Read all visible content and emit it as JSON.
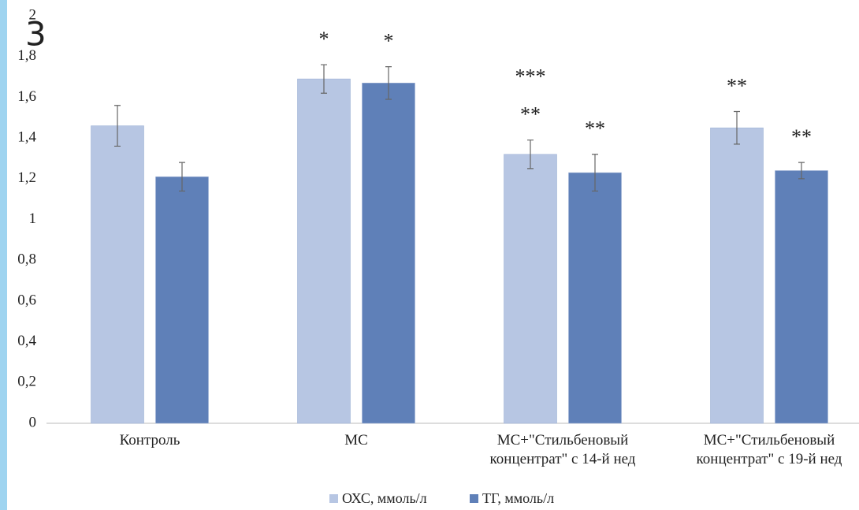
{
  "chart_data": {
    "type": "bar",
    "panel_label": "3",
    "categories": [
      "Контроль",
      "МС",
      "МС+\"Стильбеновый\nконцентрат\" с 14-й нед",
      "МС+\"Стильбеновый\nконцентрат\" с 19-й нед"
    ],
    "series": [
      {
        "name": "ОХС, ммоль/л",
        "color": "#b7c6e3",
        "values": [
          1.46,
          1.69,
          1.32,
          1.45
        ],
        "errors": [
          0.1,
          0.07,
          0.07,
          0.08
        ],
        "significance": [
          null,
          [
            "*"
          ],
          [
            "**",
            "***"
          ],
          [
            "**"
          ]
        ]
      },
      {
        "name": "ТГ, ммоль/л",
        "color": "#5f80b8",
        "values": [
          1.21,
          1.67,
          1.23,
          1.24
        ],
        "errors": [
          0.07,
          0.08,
          0.09,
          0.04
        ],
        "significance": [
          null,
          [
            "*"
          ],
          [
            "**"
          ],
          [
            "**"
          ]
        ]
      }
    ],
    "ylim": [
      0,
      2
    ],
    "yticks": [
      0,
      {
        "value": 0.2,
        "label": "0,2"
      },
      {
        "value": 0.4,
        "label": "0,4"
      },
      {
        "value": 0.6,
        "label": "0,6"
      },
      {
        "value": 0.8,
        "label": "0,8"
      },
      1,
      {
        "value": 1.2,
        "label": "1,2"
      },
      {
        "value": 1.4,
        "label": "1,4"
      },
      {
        "value": 1.6,
        "label": "1,6"
      },
      {
        "value": 1.8,
        "label": "1,8"
      },
      2
    ],
    "grid": false,
    "legend": "bottom"
  }
}
